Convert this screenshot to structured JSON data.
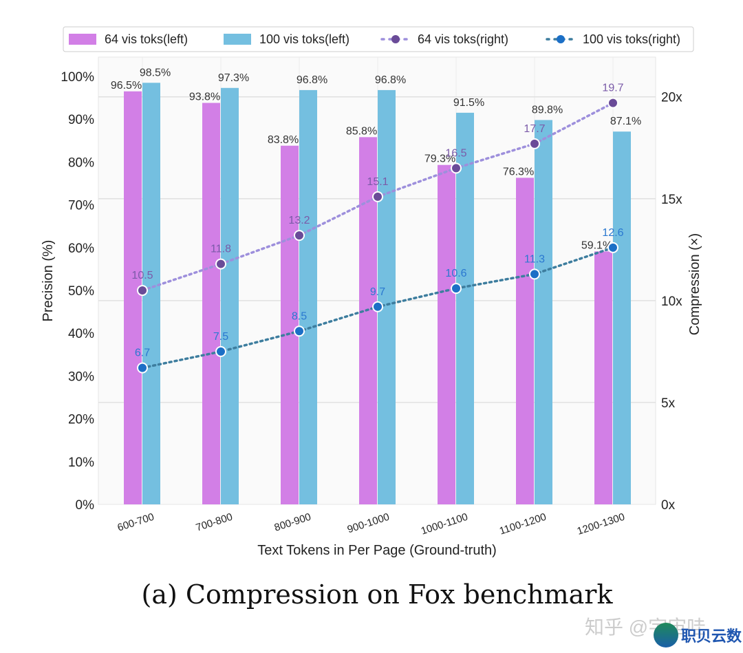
{
  "chart_data": {
    "type": "bar+line",
    "categories": [
      "600-700",
      "700-800",
      "800-900",
      "900-1000",
      "1000-1100",
      "1100-1200",
      "1200-1300"
    ],
    "series": [
      {
        "name": "64 vis toks(left)",
        "kind": "bar",
        "axis": "left",
        "color": "#d27fe6",
        "values": [
          96.5,
          93.8,
          83.8,
          85.8,
          79.3,
          76.3,
          59.1
        ],
        "labels": [
          "96.5%",
          "93.8%",
          "83.8%",
          "85.8%",
          "79.3%",
          "76.3%",
          "59.1%"
        ]
      },
      {
        "name": "100 vis toks(left)",
        "kind": "bar",
        "axis": "left",
        "color": "#74bfe0",
        "values": [
          98.5,
          97.3,
          96.8,
          96.8,
          91.5,
          89.8,
          87.1
        ],
        "labels": [
          "98.5%",
          "97.3%",
          "96.8%",
          "96.8%",
          "91.5%",
          "89.8%",
          "87.1%"
        ]
      },
      {
        "name": "64 vis toks(right)",
        "kind": "line",
        "axis": "right",
        "color": "#9d8fdc",
        "marker": "#6a4b98",
        "label_color": "#7a5aa8",
        "values": [
          10.5,
          11.8,
          13.2,
          15.1,
          16.5,
          17.7,
          19.7
        ]
      },
      {
        "name": "100 vis toks(right)",
        "kind": "line",
        "axis": "right",
        "color": "#3d7d9e",
        "marker": "#1c6fc6",
        "label_color": "#2a78d0",
        "values": [
          6.7,
          7.5,
          8.5,
          9.7,
          10.6,
          11.3,
          12.6
        ]
      }
    ],
    "xlabel": "Text Tokens in Per Page (Ground-truth)",
    "ylabel": "Precision (%)",
    "y2label": "Compression (×)",
    "ylim": [
      0,
      104.5
    ],
    "y2lim": [
      0,
      21.95
    ],
    "yticks": [
      "0%",
      "10%",
      "20%",
      "30%",
      "40%",
      "50%",
      "60%",
      "70%",
      "80%",
      "90%",
      "100%"
    ],
    "y2ticks": [
      "0x",
      "5x",
      "10x",
      "15x",
      "20x"
    ],
    "legend": "top",
    "grid": true
  },
  "caption": "(a) Compression on Fox benchmark",
  "watermark": "知乎 @宇宙哇",
  "logo_text": "职贝云数"
}
